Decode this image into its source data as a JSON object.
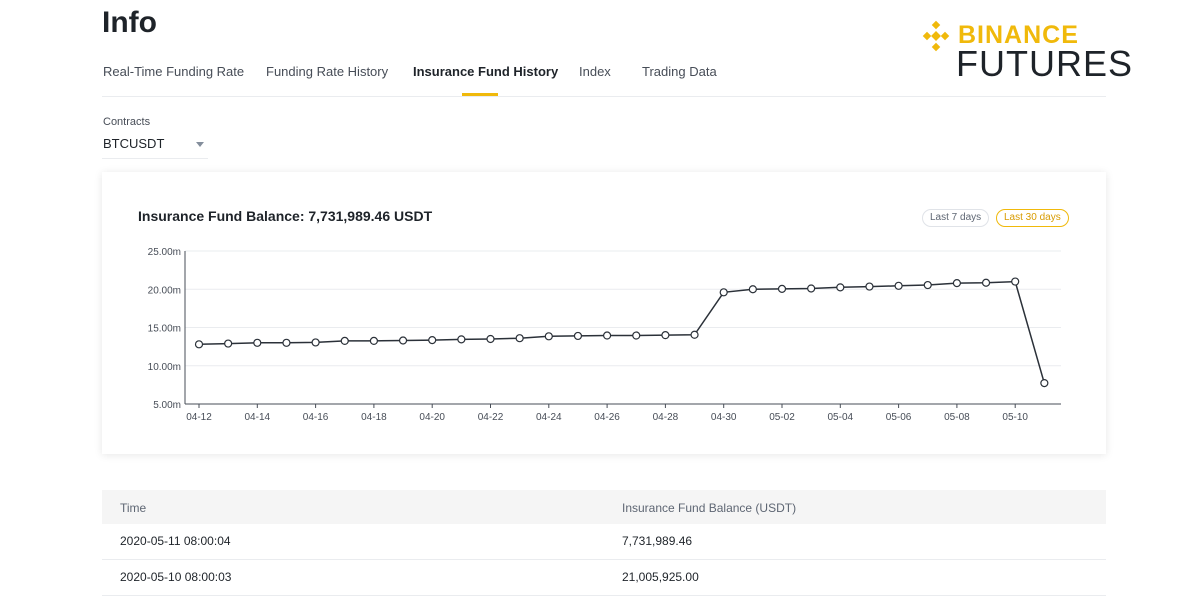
{
  "page": {
    "title": "Info"
  },
  "logo": {
    "line1": "BINANCE",
    "line2": "FUTURES",
    "accent": "#f0b90b"
  },
  "tabs": [
    {
      "label": "Real-Time Funding Rate"
    },
    {
      "label": "Funding Rate History"
    },
    {
      "label": "Insurance Fund History",
      "active": true
    },
    {
      "label": "Index"
    },
    {
      "label": "Trading Data"
    }
  ],
  "contracts": {
    "label": "Contracts",
    "selected": "BTCUSDT"
  },
  "chart_card": {
    "title": "Insurance Fund Balance: 7,731,989.46 USDT",
    "range_buttons": [
      {
        "label": "Last 7 days",
        "active": false
      },
      {
        "label": "Last 30 days",
        "active": true
      }
    ]
  },
  "chart_data": {
    "type": "line",
    "ylim": [
      5000000,
      25000000
    ],
    "y_ticks": [
      {
        "value": 5000000,
        "label": "5.00m"
      },
      {
        "value": 10000000,
        "label": "10.00m"
      },
      {
        "value": 15000000,
        "label": "15.00m"
      },
      {
        "value": 20000000,
        "label": "20.00m"
      },
      {
        "value": 25000000,
        "label": "25.00m"
      }
    ],
    "x_tick_labels": [
      "04-12",
      "04-14",
      "04-16",
      "04-18",
      "04-20",
      "04-22",
      "04-24",
      "04-26",
      "04-28",
      "04-30",
      "05-02",
      "05-04",
      "05-06",
      "05-08",
      "05-10"
    ],
    "x": [
      "04-12",
      "04-13",
      "04-14",
      "04-15",
      "04-16",
      "04-17",
      "04-18",
      "04-19",
      "04-20",
      "04-21",
      "04-22",
      "04-23",
      "04-24",
      "04-25",
      "04-26",
      "04-27",
      "04-28",
      "04-29",
      "04-30",
      "05-01",
      "05-02",
      "05-03",
      "05-04",
      "05-05",
      "05-06",
      "05-07",
      "05-08",
      "05-09",
      "05-10",
      "05-11"
    ],
    "series": [
      {
        "values": [
          12800000,
          12900000,
          13000000,
          13000000,
          13050000,
          13250000,
          13250000,
          13300000,
          13350000,
          13450000,
          13500000,
          13600000,
          13850000,
          13900000,
          13950000,
          13950000,
          14000000,
          14050000,
          19600000,
          20000000,
          20050000,
          20100000,
          20250000,
          20350000,
          20450000,
          20550000,
          20800000,
          20850000,
          21005925,
          7731989.46
        ],
        "color": "#2b3139"
      }
    ],
    "grid": true
  },
  "table": {
    "headers": [
      "Time",
      "Insurance Fund Balance (USDT)"
    ],
    "rows": [
      [
        "2020-05-11 08:00:04",
        "7,731,989.46"
      ],
      [
        "2020-05-10 08:00:03",
        "21,005,925.00"
      ]
    ]
  }
}
